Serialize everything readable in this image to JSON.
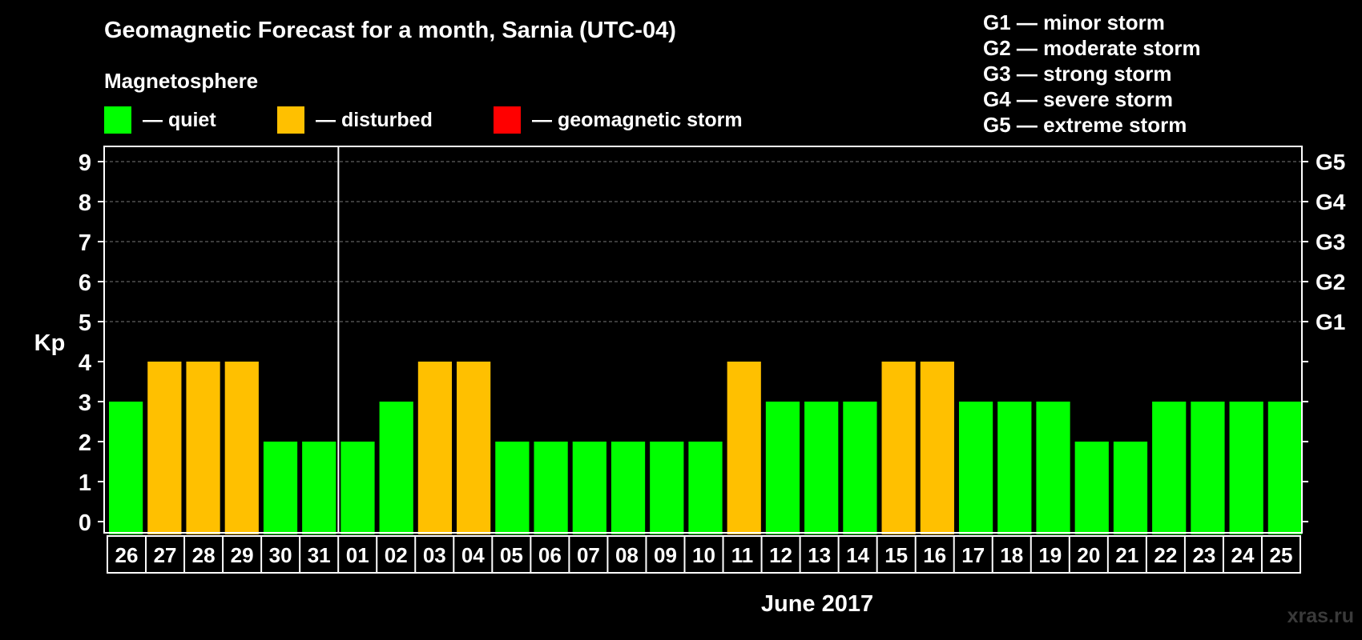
{
  "title": "Geomagnetic Forecast for a month, Sarnia (UTC-04)",
  "subtitle": "Magnetosphere",
  "legend": [
    {
      "label": "— quiet",
      "color": "#00ff00"
    },
    {
      "label": "— disturbed",
      "color": "#ffc000"
    },
    {
      "label": "— geomagnetic storm",
      "color": "#ff0000"
    }
  ],
  "g_scale_legend": [
    "G1 — minor storm",
    "G2 — moderate storm",
    "G3 — strong storm",
    "G4 — severe storm",
    "G5 — extreme storm"
  ],
  "watermark": "xras.ru",
  "chart_data": {
    "type": "bar",
    "ylabel": "Kp",
    "xlabel": "June 2017",
    "ylim": [
      0,
      9
    ],
    "yticks": [
      "0",
      "1",
      "2",
      "3",
      "4",
      "5",
      "6",
      "7",
      "8",
      "9"
    ],
    "right_axis_labels": [
      {
        "y": 5,
        "label": "G1"
      },
      {
        "y": 6,
        "label": "G2"
      },
      {
        "y": 7,
        "label": "G3"
      },
      {
        "y": 8,
        "label": "G4"
      },
      {
        "y": 9,
        "label": "G5"
      }
    ],
    "grid": "dashed horizontal",
    "month_divider_after_category": "31",
    "categories": [
      "26",
      "27",
      "28",
      "29",
      "30",
      "31",
      "01",
      "02",
      "03",
      "04",
      "05",
      "06",
      "07",
      "08",
      "09",
      "10",
      "11",
      "12",
      "13",
      "14",
      "15",
      "16",
      "17",
      "18",
      "19",
      "20",
      "21",
      "22",
      "23",
      "24",
      "25"
    ],
    "values": [
      3,
      4,
      4,
      4,
      2,
      2,
      2,
      3,
      4,
      4,
      2,
      2,
      2,
      2,
      2,
      2,
      4,
      3,
      3,
      3,
      4,
      4,
      3,
      3,
      3,
      2,
      2,
      3,
      3,
      3,
      3
    ],
    "colors": {
      "quiet": "#00ff00",
      "disturbed": "#ffc000",
      "storm": "#ff0000"
    }
  }
}
